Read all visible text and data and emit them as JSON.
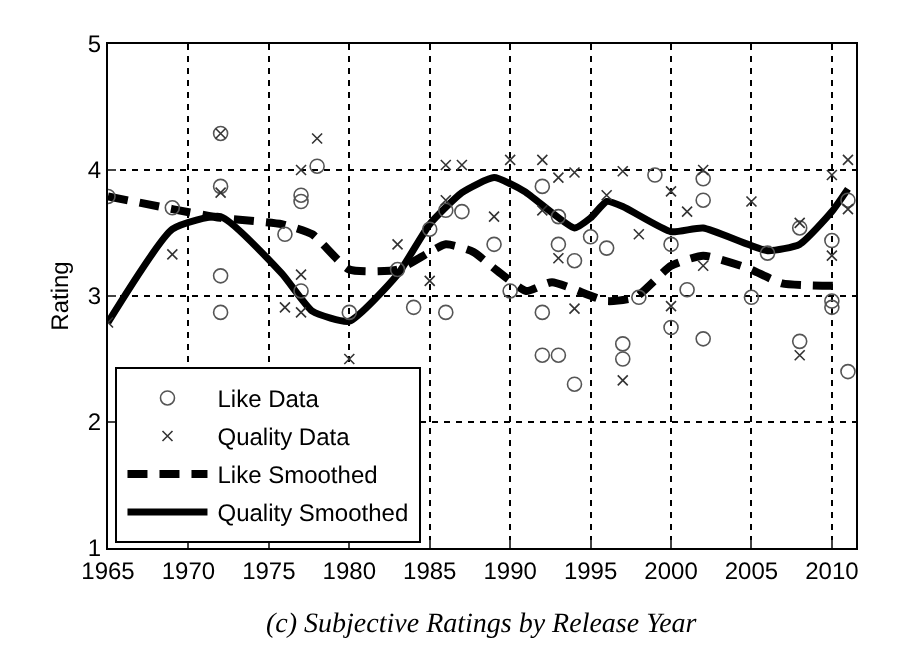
{
  "chart_data": {
    "type": "scatter",
    "title": "(c) Subjective Ratings by Release Year",
    "ylabel": "Rating",
    "xlim": [
      1965,
      2011.5
    ],
    "xticks": [
      1965,
      1970,
      1975,
      1980,
      1985,
      1990,
      1995,
      2000,
      2005,
      2010
    ],
    "ylim": [
      1,
      5
    ],
    "yticks": [
      1,
      2,
      3,
      4,
      5
    ],
    "grid": true,
    "legend": "bottom left",
    "series": [
      {
        "name": "Like Data",
        "marker": "circle",
        "color": "#555555",
        "x": [
          1965,
          1969,
          1972,
          1972,
          1972,
          1972,
          1976,
          1977,
          1977,
          1978,
          1977,
          1980,
          1984,
          1986,
          1983,
          1985,
          1986,
          1987,
          1989,
          1990,
          1992,
          1992,
          1993,
          1993,
          1994,
          1995,
          1996,
          1992,
          1993,
          1994,
          1999,
          2000,
          1998,
          1997,
          1997,
          2000,
          2002,
          2002,
          2002,
          2001,
          2005,
          2006,
          2008,
          2008,
          2010,
          2010,
          2010,
          2011,
          2011
        ],
        "values": [
          3.79,
          3.7,
          4.29,
          3.87,
          3.16,
          2.87,
          3.49,
          3.8,
          3.75,
          4.03,
          3.04,
          2.87,
          2.91,
          2.87,
          3.21,
          3.53,
          3.68,
          3.67,
          3.41,
          3.04,
          2.87,
          3.87,
          3.63,
          3.41,
          3.28,
          3.47,
          3.38,
          2.53,
          2.53,
          2.3,
          3.96,
          3.41,
          2.99,
          2.62,
          2.5,
          2.75,
          3.93,
          3.76,
          2.66,
          3.05,
          2.99,
          3.34,
          3.54,
          2.64,
          3.44,
          2.96,
          2.91,
          2.4,
          3.76
        ]
      },
      {
        "name": "Quality Data",
        "marker": "cross",
        "color": "#333333",
        "x": [
          1965,
          1969,
          1972,
          1972,
          1977,
          1978,
          1977,
          1976,
          1977,
          1980,
          1983,
          1985,
          1986,
          1986,
          1987,
          1990,
          1992,
          1989,
          1993,
          1994,
          1992,
          1993,
          1994,
          1996,
          1997,
          1998,
          2000,
          2001,
          2002,
          2002,
          2000,
          2005,
          2008,
          2008,
          2010,
          2011,
          2011,
          2010,
          1997
        ],
        "values": [
          2.79,
          3.33,
          4.29,
          3.82,
          4.0,
          4.25,
          3.17,
          2.91,
          2.87,
          2.5,
          3.41,
          3.12,
          3.76,
          4.04,
          4.04,
          4.08,
          4.08,
          3.63,
          3.94,
          3.98,
          3.68,
          3.3,
          2.9,
          3.8,
          3.99,
          3.49,
          3.83,
          3.67,
          4.0,
          3.24,
          2.92,
          3.75,
          2.53,
          3.58,
          3.96,
          4.08,
          3.69,
          3.32,
          2.33
        ]
      },
      {
        "name": "Like Smoothed",
        "type": "line",
        "line_style": "dashed",
        "color": "#000000",
        "x": [
          1965,
          1969,
          1972,
          1975.8,
          1977.7,
          1980,
          1983,
          1986,
          1987.7,
          1989.2,
          1991,
          1992.6,
          1996,
          1997.8,
          2000,
          2002,
          2004.8,
          2006.9,
          2010.6
        ],
        "values": [
          3.79,
          3.69,
          3.62,
          3.57,
          3.49,
          3.21,
          3.21,
          3.41,
          3.35,
          3.2,
          3.04,
          3.11,
          2.96,
          2.99,
          3.24,
          3.32,
          3.22,
          3.1,
          3.08
        ]
      },
      {
        "name": "Quality Smoothed",
        "type": "line",
        "line_style": "solid",
        "color": "#000000",
        "x": [
          1965,
          1969,
          1972,
          1975.8,
          1977.7,
          1980,
          1983,
          1985,
          1987,
          1989,
          1990.9,
          1994,
          1995,
          1996,
          1997,
          2000,
          2002,
          2006,
          2008,
          2010,
          2011
        ],
        "values": [
          2.79,
          3.53,
          3.63,
          3.18,
          2.88,
          2.8,
          3.17,
          3.57,
          3.82,
          3.94,
          3.83,
          3.54,
          3.62,
          3.75,
          3.71,
          3.51,
          3.54,
          3.36,
          3.41,
          3.67,
          3.85
        ]
      }
    ]
  }
}
